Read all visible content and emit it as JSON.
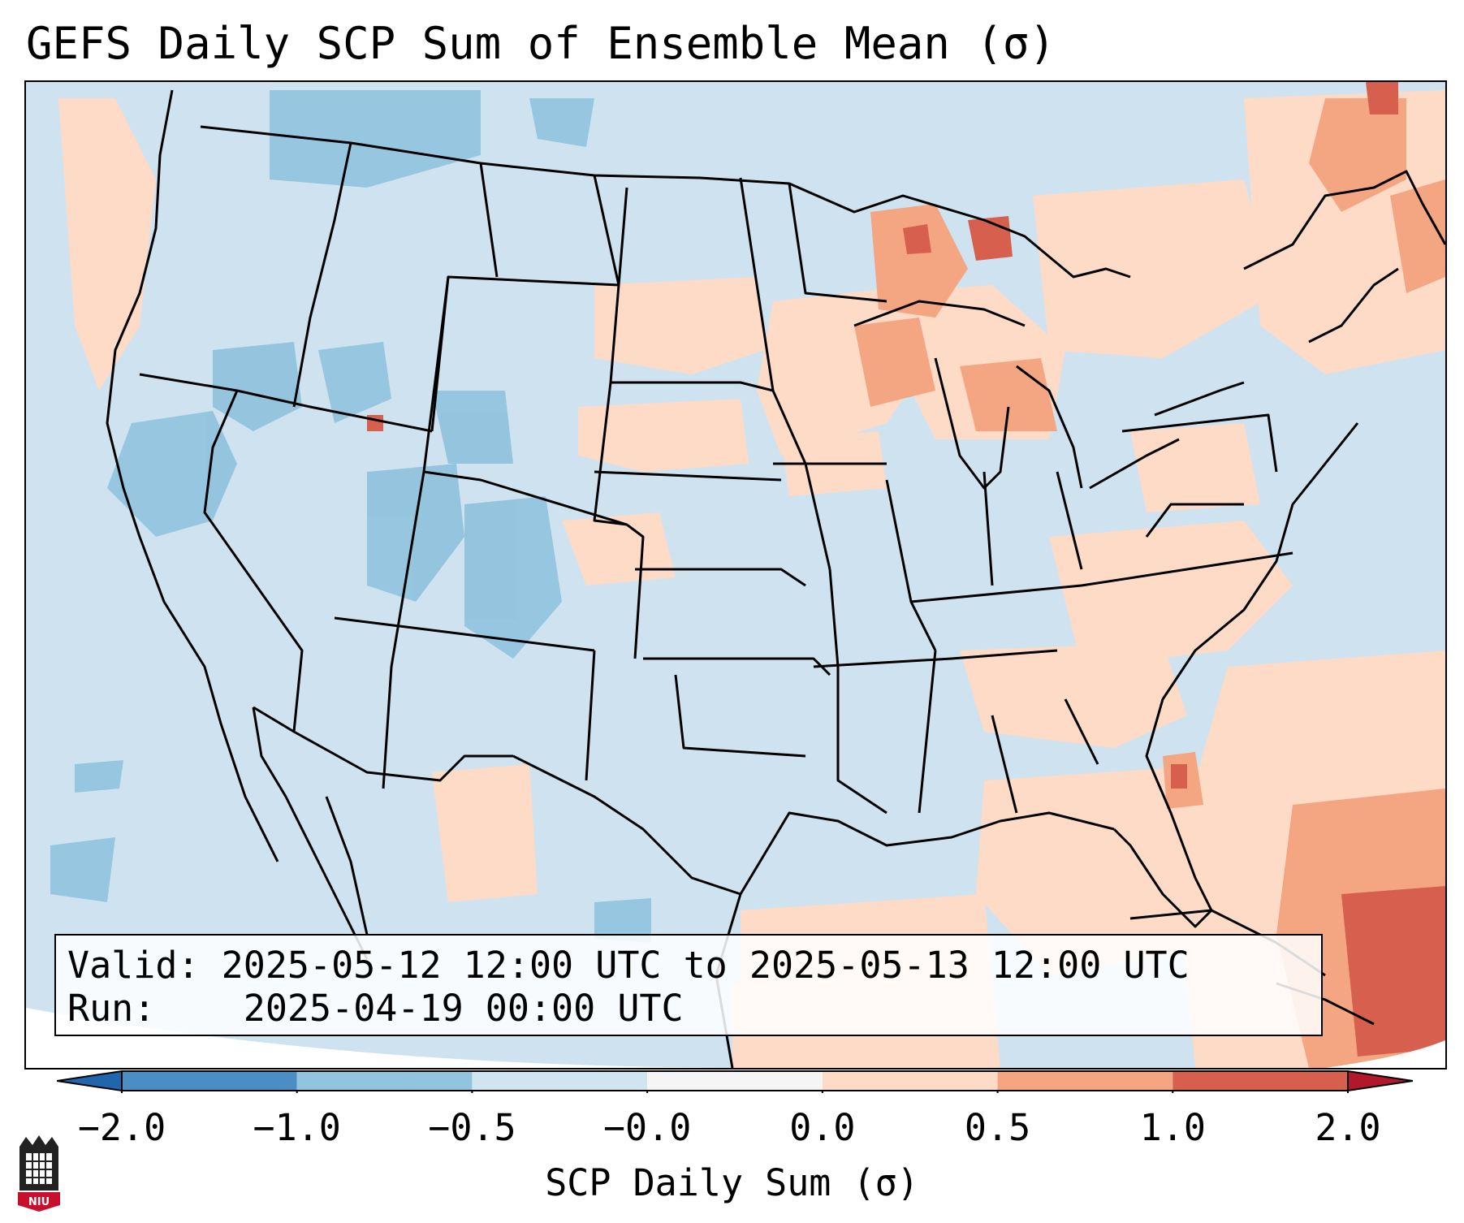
{
  "title": "GEFS Daily SCP Sum of Ensemble Mean (σ)",
  "info_box": {
    "valid_label": "Valid:",
    "valid_value": "2025-05-12 12:00 UTC to 2025-05-13 12:00 UTC",
    "run_label": "Run:",
    "run_value": "2025-04-19 00:00 UTC"
  },
  "colorbar": {
    "label": "SCP Daily Sum (σ)",
    "ticks": [
      "−2.0",
      "−1.0",
      "−0.5",
      "−0.0",
      "0.0",
      "0.5",
      "1.0",
      "2.0"
    ],
    "colors": [
      "#4a8ec3",
      "#92c4de",
      "#d1e5f0",
      "#f5f5f5",
      "#fddbc7",
      "#f4a582",
      "#d6604d"
    ],
    "under_color": "#2166ac",
    "over_color": "#b2182b"
  },
  "logo": {
    "icon": "niu-logo-icon",
    "text": "NIU"
  },
  "map": {
    "background_color": "#d1e5f0",
    "region": "Contiguous United States",
    "notable_features": [
      "positive anomalies over Upper Great Lakes and Michigan",
      "positive anomalies over Florida peninsula and western Atlantic",
      "negative anomalies over Intermountain West and Colorado"
    ]
  }
}
